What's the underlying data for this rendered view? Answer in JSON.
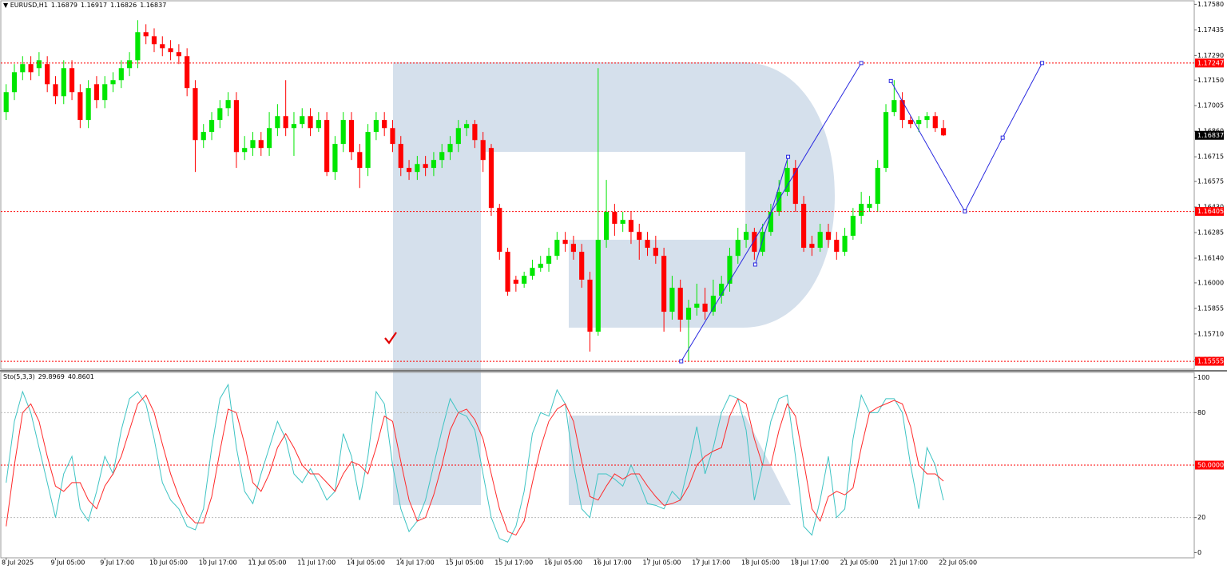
{
  "chart_data": [
    {
      "type": "candlestick",
      "symbol": "EURUSD,H1",
      "header_values": [
        1.16879,
        1.16917,
        1.16826,
        1.16837
      ],
      "up_color": "#00e600",
      "down_color": "#ff0000",
      "xlim": [
        -0.75,
        144.5
      ],
      "ylim": [
        1.1551,
        1.176
      ],
      "yticks": [
        {
          "value": 1.1758,
          "label": "1.17580"
        },
        1.17435,
        {
          "value": 1.1729,
          "label": "1.17290"
        },
        {
          "value": 1.1715,
          "label": "1.17150"
        },
        1.17005,
        {
          "value": 1.1686,
          "label": "1.16860"
        },
        1.16715,
        1.16575,
        {
          "value": 1.1643,
          "label": "1.16430"
        },
        1.16285,
        {
          "value": 1.1614,
          "label": "1.16140"
        },
        {
          "value": 1.16,
          "label": "1.16000"
        },
        1.15855,
        {
          "value": 1.1571,
          "label": "1.15710"
        },
        1.15565
      ],
      "levels": [
        1.17247,
        1.16405,
        1.15555
      ],
      "level_color": "#ff0000",
      "forecast_color": "#2a2ae0",
      "forecast": [
        {
          "x": [
            82.1,
            104.0
          ],
          "y": [
            1.15555,
            1.17247
          ]
        },
        {
          "x": [
            91.1,
            95.1
          ],
          "y": [
            1.16104,
            1.16715
          ]
        },
        {
          "x": [
            107.6,
            116.6,
            121.2,
            126.0
          ],
          "y": [
            1.17145,
            1.16405,
            1.16824,
            1.17247
          ]
        }
      ],
      "open": [
        1.16969,
        1.17082,
        1.17195,
        1.17241,
        1.17218,
        1.17241,
        1.17127,
        1.17059,
        1.17218,
        1.17082,
        1.16924,
        1.17127,
        1.17037,
        1.17127,
        1.1715,
        1.17218,
        1.17263,
        1.17422,
        1.17399,
        1.17354,
        1.17331,
        1.17309,
        1.17286,
        1.17105,
        1.1681,
        1.16856,
        1.16924,
        1.16991,
        1.17037,
        1.16742,
        1.16765,
        1.1681,
        1.16765,
        1.16878,
        1.16946,
        1.16878,
        1.16901,
        1.16946,
        1.16878,
        1.16924,
        1.16629,
        1.16788,
        1.16924,
        1.16742,
        1.16652,
        1.16856,
        1.16924,
        1.16878,
        1.16788,
        1.16652,
        1.16629,
        1.16674,
        1.16652,
        1.16697,
        1.16742,
        1.16788,
        1.16878,
        1.16901,
        1.1681,
        1.16765,
        1.16425,
        1.16176,
        1.16018,
        1.15995,
        1.1604,
        1.16085,
        1.16108,
        1.16153,
        1.16244,
        1.16221,
        1.16176,
        1.16018,
        1.15723,
        1.16244,
        1.16403,
        1.16335,
        1.16357,
        1.16289,
        1.16244,
        1.16199,
        1.16153,
        1.15836,
        1.15972,
        1.15791,
        1.15859,
        1.15882,
        1.15836,
        1.15927,
        1.15995,
        1.16153,
        1.16244,
        1.16289,
        1.16176,
        1.16289,
        1.16403,
        1.16516,
        1.16652,
        1.16448,
        1.16221,
        1.16199,
        1.16289,
        1.16244,
        1.16176,
        1.16267,
        1.1638,
        1.16425,
        1.16448,
        1.16652,
        1.16969,
        1.17037,
        1.16924,
        1.16901,
        1.16924,
        1.16946,
        1.16878
      ],
      "high": [
        1.17127,
        1.17241,
        1.17286,
        1.17286,
        1.17309,
        1.17286,
        1.17173,
        1.17263,
        1.17263,
        1.17127,
        1.1715,
        1.17173,
        1.17173,
        1.17195,
        1.17263,
        1.17309,
        1.1749,
        1.17467,
        1.17444,
        1.17399,
        1.17377,
        1.17354,
        1.17331,
        1.1715,
        1.16901,
        1.16969,
        1.17037,
        1.17082,
        1.17082,
        1.16833,
        1.16856,
        1.16856,
        1.16969,
        1.17014,
        1.1715,
        1.16969,
        1.16991,
        1.16991,
        1.16969,
        1.16969,
        1.16833,
        1.16969,
        1.16969,
        1.16788,
        1.16901,
        1.16969,
        1.16969,
        1.16924,
        1.16833,
        1.16697,
        1.1672,
        1.1672,
        1.16742,
        1.16788,
        1.16833,
        1.16924,
        1.16924,
        1.16924,
        1.16856,
        1.16788,
        1.16448,
        1.16199,
        1.1604,
        1.16063,
        1.16131,
        1.16153,
        1.16199,
        1.16289,
        1.16289,
        1.16267,
        1.16221,
        1.16063,
        1.17218,
        1.16584,
        1.16448,
        1.16403,
        1.16403,
        1.16335,
        1.16289,
        1.16267,
        1.16199,
        1.1604,
        1.16018,
        1.15904,
        1.15995,
        1.15972,
        1.16018,
        1.1604,
        1.16199,
        1.16312,
        1.16335,
        1.16312,
        1.16335,
        1.16448,
        1.16584,
        1.1672,
        1.16697,
        1.16493,
        1.16267,
        1.16335,
        1.16335,
        1.16289,
        1.16312,
        1.16425,
        1.16516,
        1.16493,
        1.16697,
        1.17014,
        1.1715,
        1.17082,
        1.16946,
        1.16946,
        1.16969,
        1.16969,
        1.16924
      ],
      "low": [
        1.16924,
        1.17037,
        1.1715,
        1.1715,
        1.17173,
        1.17082,
        1.17014,
        1.17014,
        1.17037,
        1.16878,
        1.16878,
        1.16991,
        1.16991,
        1.17082,
        1.17105,
        1.17173,
        1.17218,
        1.17354,
        1.17309,
        1.17286,
        1.17263,
        1.17241,
        1.17059,
        1.16629,
        1.16765,
        1.1681,
        1.16878,
        1.16946,
        1.16652,
        1.16697,
        1.1672,
        1.1672,
        1.1672,
        1.16833,
        1.16833,
        1.1672,
        1.16878,
        1.16833,
        1.16856,
        1.16606,
        1.16584,
        1.16742,
        1.16697,
        1.16538,
        1.16606,
        1.1681,
        1.16833,
        1.16742,
        1.16606,
        1.16584,
        1.16584,
        1.16606,
        1.16606,
        1.16652,
        1.16697,
        1.16742,
        1.16833,
        1.16765,
        1.16629,
        1.1638,
        1.16131,
        1.15927,
        1.1595,
        1.15972,
        1.16018,
        1.16063,
        1.16063,
        1.16131,
        1.16176,
        1.16131,
        1.15972,
        1.1561,
        1.157,
        1.16199,
        1.16267,
        1.16289,
        1.16221,
        1.16131,
        1.16153,
        1.16108,
        1.15723,
        1.15791,
        1.15723,
        1.15555,
        1.15814,
        1.15791,
        1.15814,
        1.15882,
        1.1595,
        1.16108,
        1.16199,
        1.16131,
        1.16153,
        1.16267,
        1.1638,
        1.16493,
        1.16403,
        1.16176,
        1.16153,
        1.16176,
        1.16199,
        1.16131,
        1.16153,
        1.16244,
        1.16335,
        1.16403,
        1.16403,
        1.16629,
        1.16946,
        1.16878,
        1.16878,
        1.16856,
        1.16878,
        1.16856,
        1.16833
      ],
      "close": [
        1.17082,
        1.17195,
        1.17241,
        1.17195,
        1.17263,
        1.17127,
        1.17059,
        1.17218,
        1.17082,
        1.16924,
        1.17105,
        1.17037,
        1.17127,
        1.1715,
        1.17218,
        1.17263,
        1.17422,
        1.17399,
        1.17354,
        1.17331,
        1.17309,
        1.17286,
        1.17105,
        1.1681,
        1.16856,
        1.16924,
        1.16991,
        1.17037,
        1.16742,
        1.16765,
        1.1681,
        1.16765,
        1.16878,
        1.16946,
        1.16878,
        1.16901,
        1.16946,
        1.16878,
        1.16924,
        1.16629,
        1.16788,
        1.16924,
        1.16742,
        1.16652,
        1.16856,
        1.16924,
        1.16878,
        1.16788,
        1.16652,
        1.16629,
        1.16674,
        1.16652,
        1.16697,
        1.16742,
        1.16788,
        1.16878,
        1.16901,
        1.1681,
        1.16697,
        1.16425,
        1.16176,
        1.1595,
        1.15995,
        1.1604,
        1.16085,
        1.16108,
        1.16153,
        1.16244,
        1.16221,
        1.16176,
        1.16018,
        1.15723,
        1.16244,
        1.16403,
        1.16335,
        1.16357,
        1.16289,
        1.16244,
        1.16199,
        1.16153,
        1.15836,
        1.15972,
        1.15791,
        1.15859,
        1.15882,
        1.15836,
        1.15927,
        1.15995,
        1.16153,
        1.16244,
        1.16289,
        1.16176,
        1.16289,
        1.16403,
        1.16516,
        1.16652,
        1.16448,
        1.16199,
        1.16199,
        1.16289,
        1.16244,
        1.16176,
        1.16267,
        1.1638,
        1.16448,
        1.16448,
        1.16652,
        1.16969,
        1.17037,
        1.16924,
        1.16901,
        1.16924,
        1.16946,
        1.16878,
        1.16837
      ]
    },
    {
      "type": "line",
      "indicator": "Sto(5,3,3)",
      "ylim": [
        -3,
        103
      ],
      "yticks": [
        100,
        80,
        20,
        0
      ],
      "dotted_levels": [
        80,
        20
      ],
      "levels": [
        {
          "value": 50,
          "label": "50.0000"
        }
      ],
      "level_color": "#ff0000",
      "categories": [
        "8 Jul 2025",
        null,
        null,
        null,
        null,
        null,
        "9 Jul 05:00",
        null,
        null,
        null,
        null,
        null,
        "9 Jul 17:00",
        null,
        null,
        null,
        null,
        null,
        "10 Jul 05:00",
        null,
        null,
        null,
        null,
        null,
        "10 Jul 17:00",
        null,
        null,
        null,
        null,
        null,
        "11 Jul 05:00",
        null,
        null,
        null,
        null,
        null,
        "11 Jul 17:00",
        null,
        null,
        null,
        null,
        null,
        "14 Jul 05:00",
        null,
        null,
        null,
        null,
        null,
        "14 Jul 17:00",
        null,
        null,
        null,
        null,
        null,
        "15 Jul 05:00",
        null,
        null,
        null,
        null,
        null,
        "15 Jul 17:00",
        null,
        null,
        null,
        null,
        null,
        "16 Jul 05:00",
        null,
        null,
        null,
        null,
        null,
        "16 Jul 17:00",
        null,
        null,
        null,
        null,
        null,
        "17 Jul 05:00",
        null,
        null,
        null,
        null,
        null,
        "17 Jul 17:00",
        null,
        null,
        null,
        null,
        null,
        "18 Jul 05:00",
        null,
        null,
        null,
        null,
        null,
        "18 Jul 17:00",
        null,
        null,
        null,
        null,
        null,
        "21 Jul 05:00",
        null,
        null,
        null,
        null,
        null,
        "21 Jul 17:00",
        null,
        null,
        null,
        null,
        null,
        "22 Jul 05:00"
      ],
      "series": [
        {
          "color": "#3fc4c4",
          "values": [
            40,
            75,
            92,
            80,
            60,
            40,
            20,
            45,
            55,
            25,
            18,
            35,
            55,
            45,
            70,
            88,
            92,
            85,
            65,
            40,
            30,
            25,
            15,
            13,
            25,
            60,
            88,
            96,
            60,
            35,
            28,
            45,
            60,
            75,
            65,
            45,
            40,
            48,
            40,
            30,
            35,
            68,
            55,
            30,
            55,
            92,
            85,
            50,
            25,
            12,
            18,
            30,
            50,
            70,
            88,
            80,
            78,
            70,
            45,
            20,
            8,
            6,
            15,
            35,
            68,
            80,
            78,
            93,
            85,
            50,
            25,
            20,
            45,
            45,
            42,
            38,
            50,
            40,
            28,
            27,
            25,
            35,
            30,
            50,
            72,
            45,
            60,
            80,
            90,
            88,
            70,
            30,
            50,
            75,
            88,
            90,
            55,
            15,
            10,
            30,
            55,
            20,
            25,
            65,
            90,
            80,
            80,
            88,
            88,
            80,
            50,
            25,
            60,
            50,
            29.8969
          ]
        },
        {
          "color": "#ff2a2a",
          "values": [
            15,
            50,
            80,
            85,
            75,
            55,
            38,
            35,
            40,
            40,
            30,
            25,
            38,
            45,
            55,
            70,
            85,
            90,
            80,
            62,
            45,
            32,
            22,
            17,
            17,
            32,
            58,
            82,
            80,
            62,
            40,
            35,
            45,
            60,
            68,
            60,
            50,
            45,
            45,
            40,
            35,
            45,
            52,
            50,
            45,
            60,
            78,
            75,
            52,
            30,
            18,
            20,
            33,
            50,
            70,
            80,
            82,
            76,
            65,
            45,
            25,
            12,
            10,
            18,
            40,
            60,
            75,
            82,
            85,
            75,
            52,
            32,
            30,
            38,
            45,
            42,
            45,
            45,
            38,
            32,
            27,
            28,
            30,
            38,
            50,
            55,
            58,
            60,
            78,
            88,
            85,
            65,
            50,
            50,
            70,
            85,
            78,
            52,
            25,
            18,
            32,
            35,
            33,
            37,
            60,
            80,
            83,
            85,
            87,
            85,
            72,
            50,
            45,
            45,
            40.8601
          ]
        }
      ]
    }
  ]
}
